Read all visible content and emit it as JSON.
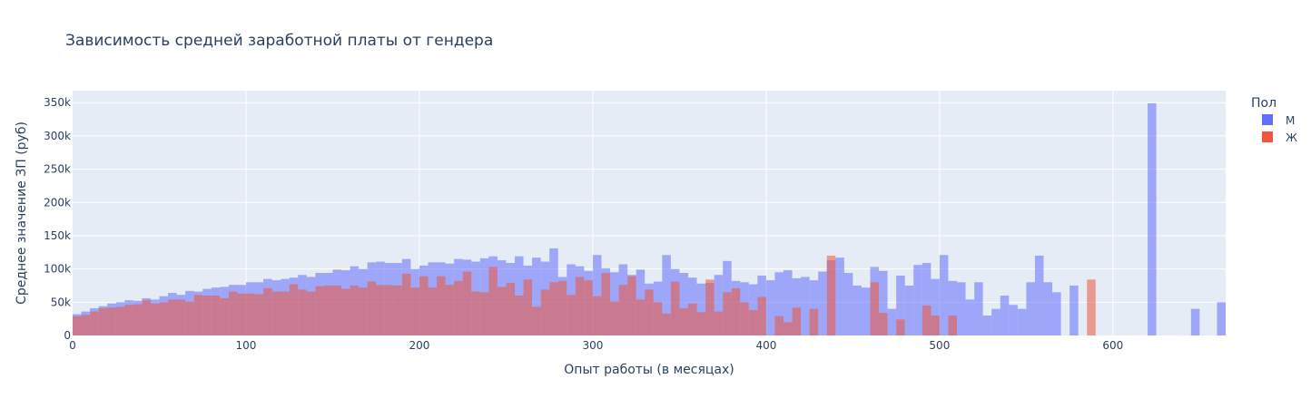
{
  "chart_data": {
    "type": "bar",
    "title": "Зависимость средней заработной платы от гендера",
    "xlabel": "Опыт работы (в месяцах)",
    "ylabel": "Среднее значение ЗП (руб)",
    "xlim": [
      0,
      665
    ],
    "ylim": [
      0,
      368000
    ],
    "x_ticks": [
      0,
      100,
      200,
      300,
      400,
      500,
      600
    ],
    "x_tick_labels": [
      "0",
      "100",
      "200",
      "300",
      "400",
      "500",
      "600"
    ],
    "y_ticks": [
      0,
      50000,
      100000,
      150000,
      200000,
      250000,
      300000,
      350000
    ],
    "y_tick_labels": [
      "0",
      "50k",
      "100k",
      "150k",
      "200k",
      "250k",
      "300k",
      "350k"
    ],
    "grid": true,
    "bin_width": 5,
    "legend": {
      "title": "Пол",
      "position": "right"
    },
    "series": [
      {
        "name": "М",
        "color": "#636efa",
        "x": [
          0,
          5,
          10,
          15,
          20,
          25,
          30,
          35,
          40,
          45,
          50,
          55,
          60,
          65,
          70,
          75,
          80,
          85,
          90,
          95,
          100,
          105,
          110,
          115,
          120,
          125,
          130,
          135,
          140,
          145,
          150,
          155,
          160,
          165,
          170,
          175,
          180,
          185,
          190,
          195,
          200,
          205,
          210,
          215,
          220,
          225,
          230,
          235,
          240,
          245,
          250,
          255,
          260,
          265,
          270,
          275,
          280,
          285,
          290,
          295,
          300,
          305,
          310,
          315,
          320,
          325,
          330,
          335,
          340,
          345,
          350,
          355,
          360,
          365,
          370,
          375,
          380,
          385,
          390,
          395,
          400,
          405,
          410,
          415,
          420,
          425,
          430,
          435,
          440,
          445,
          450,
          455,
          460,
          465,
          470,
          475,
          480,
          485,
          490,
          495,
          500,
          505,
          510,
          515,
          520,
          525,
          530,
          535,
          540,
          545,
          550,
          555,
          560,
          565,
          575,
          620,
          645,
          660
        ],
        "values": [
          32000,
          36000,
          41000,
          44000,
          48000,
          50000,
          53000,
          52000,
          56000,
          54000,
          59000,
          64000,
          61000,
          67000,
          66000,
          70000,
          72000,
          73000,
          76000,
          76000,
          80000,
          80000,
          85000,
          83000,
          85000,
          87000,
          91000,
          88000,
          94000,
          94000,
          99000,
          98000,
          104000,
          100000,
          110000,
          111000,
          109000,
          109000,
          115000,
          100000,
          105000,
          110000,
          110000,
          108000,
          115000,
          114000,
          111000,
          116000,
          119000,
          113000,
          109000,
          119000,
          105000,
          117000,
          111000,
          131000,
          88000,
          107000,
          104000,
          97000,
          121000,
          101000,
          95000,
          107000,
          91000,
          99000,
          78000,
          81000,
          121000,
          100000,
          94000,
          87000,
          78000,
          79000,
          91000,
          112000,
          82000,
          80000,
          77000,
          90000,
          83000,
          95000,
          98000,
          86000,
          88000,
          83000,
          96000,
          113000,
          117000,
          94000,
          75000,
          72000,
          103000,
          97000,
          40000,
          90000,
          75000,
          106000,
          109000,
          85000,
          121000,
          82000,
          80000,
          54000,
          80000,
          30000,
          40000,
          60000,
          46000,
          40000,
          80000,
          120000,
          80000,
          65000,
          75000,
          349000,
          40000,
          50000
        ]
      },
      {
        "name": "Ж",
        "color": "#ef553b",
        "x": [
          0,
          5,
          10,
          15,
          20,
          25,
          30,
          35,
          40,
          45,
          50,
          55,
          60,
          65,
          70,
          75,
          80,
          85,
          90,
          95,
          100,
          105,
          110,
          115,
          120,
          125,
          130,
          135,
          140,
          145,
          150,
          155,
          160,
          165,
          170,
          175,
          180,
          185,
          190,
          195,
          200,
          205,
          210,
          215,
          220,
          225,
          230,
          235,
          240,
          245,
          250,
          255,
          260,
          265,
          270,
          275,
          280,
          285,
          290,
          295,
          300,
          305,
          310,
          315,
          320,
          325,
          330,
          335,
          340,
          345,
          350,
          355,
          360,
          365,
          370,
          375,
          380,
          385,
          390,
          395,
          405,
          410,
          415,
          425,
          435,
          460,
          465,
          475,
          490,
          495,
          505,
          585
        ],
        "values": [
          29000,
          31000,
          36000,
          41000,
          42000,
          43000,
          46000,
          47000,
          53000,
          48000,
          50000,
          54000,
          54000,
          51000,
          61000,
          60000,
          60000,
          56000,
          66000,
          63000,
          63000,
          62000,
          71000,
          66000,
          66000,
          77000,
          69000,
          66000,
          74000,
          75000,
          75000,
          70000,
          75000,
          72000,
          81000,
          76000,
          76000,
          75000,
          93000,
          72000,
          89000,
          72000,
          89000,
          76000,
          82000,
          96000,
          66000,
          65000,
          103000,
          73000,
          79000,
          60000,
          84000,
          43000,
          69000,
          80000,
          82000,
          61000,
          88000,
          83000,
          59000,
          94000,
          51000,
          76000,
          89000,
          54000,
          69000,
          50000,
          33000,
          81000,
          41000,
          48000,
          35000,
          84000,
          36000,
          65000,
          71000,
          50000,
          38000,
          58000,
          29000,
          20000,
          42000,
          40000,
          120000,
          80000,
          34000,
          24000,
          45000,
          30000,
          30000,
          84000
        ]
      }
    ]
  }
}
